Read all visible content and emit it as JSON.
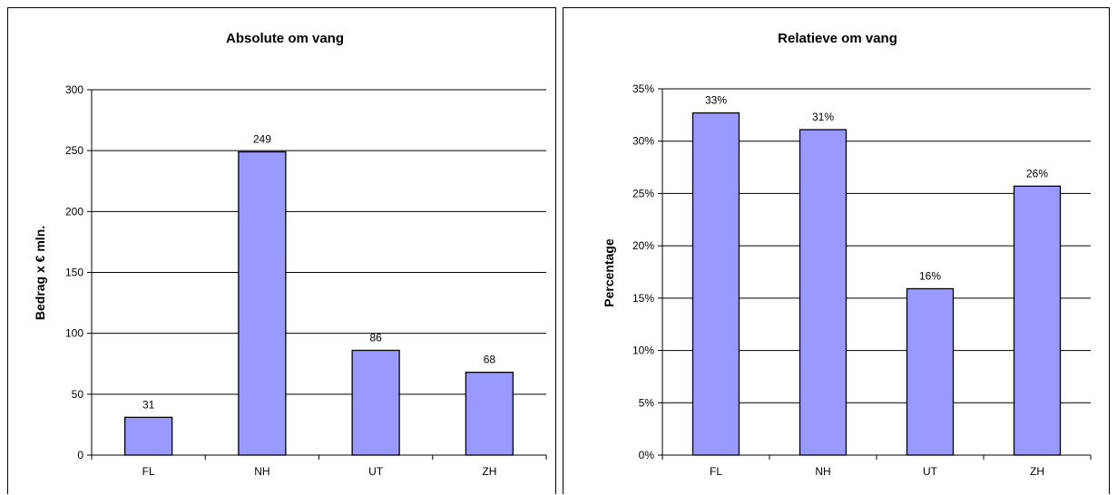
{
  "chart_data": [
    {
      "type": "bar",
      "title": "Absolute om vang",
      "xlabel": "",
      "ylabel": "Bedrag x € mln.",
      "categories": [
        "FL",
        "NH",
        "UT",
        "ZH"
      ],
      "values": [
        31,
        249,
        86,
        68
      ],
      "data_labels": [
        "31",
        "249",
        "86",
        "68"
      ],
      "ylim": [
        0,
        300
      ],
      "yticks": [
        0,
        50,
        100,
        150,
        200,
        250,
        300
      ],
      "ytick_labels": [
        "0",
        "50",
        "100",
        "150",
        "200",
        "250",
        "300"
      ],
      "grid": true,
      "bar_color": "#9999FF"
    },
    {
      "type": "bar",
      "title": "Relatieve om vang",
      "xlabel": "",
      "ylabel": "Percentage",
      "categories": [
        "FL",
        "NH",
        "UT",
        "ZH"
      ],
      "values": [
        32.7,
        31.1,
        15.9,
        25.7
      ],
      "data_labels": [
        "33%",
        "31%",
        "16%",
        "26%"
      ],
      "ylim": [
        0,
        35
      ],
      "yticks": [
        0,
        5,
        10,
        15,
        20,
        25,
        30,
        35
      ],
      "ytick_labels": [
        "0%",
        "5%",
        "10%",
        "15%",
        "20%",
        "25%",
        "30%",
        "35%"
      ],
      "grid": true,
      "bar_color": "#9999FF"
    }
  ]
}
